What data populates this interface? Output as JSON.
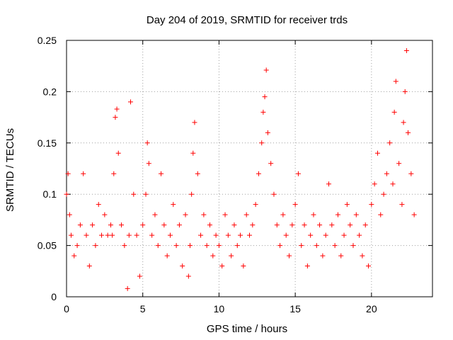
{
  "chart_data": {
    "type": "scatter",
    "title": "Day 204 of 2019, SRMTID for receiver trds",
    "xlabel": "GPS time / hours",
    "ylabel": "SRMTID / TECUs",
    "xlim": [
      0,
      24
    ],
    "ylim": [
      0,
      0.25
    ],
    "xticks": [
      0,
      5,
      10,
      15,
      20
    ],
    "xtick_labels": [
      "0",
      "5",
      "10",
      "15",
      "20"
    ],
    "yticks": [
      0,
      0.05,
      0.1,
      0.15,
      0.2,
      0.25
    ],
    "ytick_labels": [
      "0",
      "0.05",
      "0.1",
      "0.15",
      "0.2",
      "0.25"
    ],
    "grid": true,
    "marker": "+",
    "series": [
      {
        "name": "SRMTID",
        "color": "#ff0000",
        "x": [
          0.0,
          0.1,
          0.2,
          0.3,
          0.5,
          0.7,
          0.9,
          1.1,
          1.3,
          1.5,
          1.7,
          1.9,
          2.1,
          2.3,
          2.5,
          2.7,
          2.9,
          3.0,
          3.1,
          3.2,
          3.3,
          3.4,
          3.6,
          3.8,
          4.0,
          4.1,
          4.2,
          4.4,
          4.6,
          4.8,
          5.0,
          5.2,
          5.3,
          5.4,
          5.6,
          5.8,
          6.0,
          6.2,
          6.4,
          6.6,
          6.8,
          7.0,
          7.2,
          7.4,
          7.6,
          7.8,
          8.0,
          8.1,
          8.2,
          8.3,
          8.4,
          8.6,
          8.8,
          9.0,
          9.2,
          9.4,
          9.6,
          9.8,
          10.0,
          10.2,
          10.4,
          10.6,
          10.8,
          11.0,
          11.2,
          11.4,
          11.6,
          11.8,
          12.0,
          12.2,
          12.4,
          12.6,
          12.8,
          12.9,
          13.0,
          13.1,
          13.2,
          13.4,
          13.6,
          13.8,
          14.0,
          14.2,
          14.4,
          14.6,
          14.8,
          15.0,
          15.2,
          15.4,
          15.6,
          15.8,
          16.0,
          16.2,
          16.4,
          16.6,
          16.8,
          17.0,
          17.2,
          17.4,
          17.6,
          17.8,
          18.0,
          18.2,
          18.4,
          18.6,
          18.8,
          19.0,
          19.2,
          19.4,
          19.6,
          19.8,
          20.0,
          20.2,
          20.4,
          20.6,
          20.8,
          21.0,
          21.2,
          21.4,
          21.5,
          21.6,
          21.8,
          22.0,
          22.1,
          22.2,
          22.3,
          22.4,
          22.6,
          22.8
        ],
        "y": [
          0.1,
          0.12,
          0.08,
          0.06,
          0.04,
          0.05,
          0.07,
          0.12,
          0.06,
          0.03,
          0.07,
          0.05,
          0.09,
          0.06,
          0.08,
          0.06,
          0.07,
          0.06,
          0.12,
          0.175,
          0.183,
          0.14,
          0.07,
          0.05,
          0.008,
          0.06,
          0.19,
          0.1,
          0.06,
          0.02,
          0.07,
          0.1,
          0.15,
          0.13,
          0.06,
          0.08,
          0.05,
          0.12,
          0.07,
          0.04,
          0.06,
          0.09,
          0.05,
          0.07,
          0.03,
          0.08,
          0.02,
          0.05,
          0.1,
          0.14,
          0.17,
          0.12,
          0.06,
          0.08,
          0.05,
          0.07,
          0.04,
          0.06,
          0.05,
          0.03,
          0.08,
          0.06,
          0.04,
          0.07,
          0.05,
          0.06,
          0.03,
          0.08,
          0.06,
          0.07,
          0.09,
          0.12,
          0.15,
          0.18,
          0.195,
          0.221,
          0.16,
          0.13,
          0.1,
          0.07,
          0.05,
          0.08,
          0.06,
          0.04,
          0.07,
          0.09,
          0.12,
          0.05,
          0.07,
          0.03,
          0.06,
          0.08,
          0.05,
          0.07,
          0.04,
          0.06,
          0.11,
          0.07,
          0.05,
          0.08,
          0.04,
          0.06,
          0.09,
          0.07,
          0.05,
          0.08,
          0.06,
          0.04,
          0.07,
          0.03,
          0.09,
          0.11,
          0.14,
          0.08,
          0.1,
          0.12,
          0.15,
          0.11,
          0.18,
          0.21,
          0.13,
          0.09,
          0.17,
          0.2,
          0.24,
          0.16,
          0.12,
          0.08
        ]
      }
    ]
  }
}
